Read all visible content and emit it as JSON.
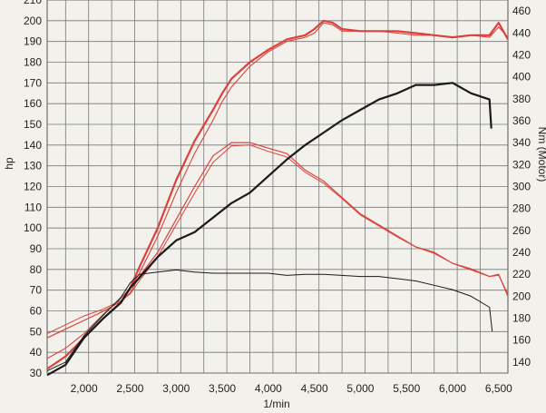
{
  "chart_data": {
    "type": "line",
    "xlabel": "1/min",
    "ylabel_left": "hp",
    "ylabel_right": "Nm (Motor)",
    "xlim": [
      1600,
      6600
    ],
    "ylim_left": [
      30,
      210
    ],
    "ylim_right": [
      130,
      470
    ],
    "x_ticks": [
      "2,000",
      "2,500",
      "3,000",
      "3,500",
      "4,000",
      "4,500",
      "5,000",
      "5,500",
      "6,000",
      "6,500"
    ],
    "y_left_ticks": [
      "30",
      "40",
      "50",
      "60",
      "70",
      "80",
      "90",
      "100",
      "110",
      "120",
      "130",
      "140",
      "150",
      "160",
      "170",
      "180",
      "190",
      "200",
      "210"
    ],
    "y_right_ticks": [
      "140",
      "160",
      "180",
      "200",
      "220",
      "240",
      "260",
      "280",
      "300",
      "320",
      "340",
      "360",
      "380",
      "400",
      "420",
      "440",
      "460"
    ],
    "grid": true,
    "series": [
      {
        "color": "#d9423d",
        "axis": "left",
        "width": 2.2,
        "points": [
          [
            1600,
            32
          ],
          [
            1800,
            38
          ],
          [
            2000,
            47
          ],
          [
            2200,
            56
          ],
          [
            2400,
            64
          ],
          [
            2500,
            71
          ],
          [
            2600,
            81
          ],
          [
            2800,
            100
          ],
          [
            3000,
            123
          ],
          [
            3200,
            142
          ],
          [
            3400,
            157
          ],
          [
            3500,
            165
          ],
          [
            3600,
            172
          ],
          [
            3800,
            180
          ],
          [
            4000,
            186
          ],
          [
            4200,
            191
          ],
          [
            4400,
            193
          ],
          [
            4500,
            196
          ],
          [
            4600,
            200
          ],
          [
            4700,
            199
          ],
          [
            4800,
            196
          ],
          [
            5000,
            195
          ],
          [
            5200,
            195
          ],
          [
            5400,
            195
          ],
          [
            5600,
            194
          ],
          [
            5800,
            193
          ],
          [
            6000,
            192
          ],
          [
            6200,
            193
          ],
          [
            6400,
            193
          ],
          [
            6500,
            199
          ],
          [
            6600,
            191
          ]
        ]
      },
      {
        "color": "#d9423d",
        "axis": "left",
        "width": 1.1,
        "points": [
          [
            1600,
            37
          ],
          [
            1800,
            42
          ],
          [
            2000,
            49
          ],
          [
            2200,
            58
          ],
          [
            2400,
            66
          ],
          [
            2500,
            71
          ],
          [
            2600,
            78
          ],
          [
            2800,
            96
          ],
          [
            3000,
            117
          ],
          [
            3200,
            136
          ],
          [
            3400,
            152
          ],
          [
            3500,
            161
          ],
          [
            3600,
            168
          ],
          [
            3800,
            178
          ],
          [
            4000,
            185
          ],
          [
            4200,
            190
          ],
          [
            4400,
            192
          ],
          [
            4500,
            194
          ],
          [
            4600,
            199
          ],
          [
            4700,
            198
          ],
          [
            4800,
            195
          ],
          [
            5000,
            195
          ],
          [
            5200,
            195
          ],
          [
            5400,
            194
          ],
          [
            5600,
            193
          ],
          [
            5800,
            193
          ],
          [
            6000,
            192
          ],
          [
            6200,
            193
          ],
          [
            6400,
            192
          ],
          [
            6500,
            197
          ],
          [
            6600,
            192
          ]
        ]
      },
      {
        "color": "#d9423d",
        "axis": "right",
        "width": 1.2,
        "points": [
          [
            1600,
            162
          ],
          [
            1800,
            170
          ],
          [
            2000,
            178
          ],
          [
            2200,
            186
          ],
          [
            2400,
            195
          ],
          [
            2500,
            203
          ],
          [
            2600,
            218
          ],
          [
            2800,
            240
          ],
          [
            3000,
            270
          ],
          [
            3200,
            300
          ],
          [
            3400,
            328
          ],
          [
            3600,
            340
          ],
          [
            3800,
            340
          ],
          [
            4000,
            335
          ],
          [
            4200,
            330
          ],
          [
            4400,
            315
          ],
          [
            4600,
            305
          ],
          [
            4800,
            290
          ],
          [
            5000,
            275
          ],
          [
            5200,
            265
          ],
          [
            5400,
            255
          ],
          [
            5600,
            245
          ],
          [
            5800,
            240
          ],
          [
            6000,
            230
          ],
          [
            6200,
            225
          ],
          [
            6400,
            218
          ],
          [
            6500,
            220
          ],
          [
            6600,
            200
          ]
        ]
      },
      {
        "color": "#d9423d",
        "axis": "right",
        "width": 1.0,
        "points": [
          [
            1600,
            166
          ],
          [
            1800,
            174
          ],
          [
            2000,
            182
          ],
          [
            2200,
            188
          ],
          [
            2400,
            196
          ],
          [
            2500,
            202
          ],
          [
            2600,
            214
          ],
          [
            2800,
            236
          ],
          [
            3000,
            265
          ],
          [
            3200,
            294
          ],
          [
            3400,
            322
          ],
          [
            3600,
            337
          ],
          [
            3800,
            338
          ],
          [
            4000,
            332
          ],
          [
            4200,
            327
          ],
          [
            4400,
            313
          ],
          [
            4600,
            303
          ],
          [
            4800,
            289
          ],
          [
            5000,
            274
          ],
          [
            5200,
            264
          ],
          [
            5400,
            254
          ],
          [
            5600,
            245
          ],
          [
            5800,
            239
          ],
          [
            6000,
            230
          ],
          [
            6200,
            224
          ],
          [
            6400,
            218
          ],
          [
            6500,
            219
          ],
          [
            6600,
            202
          ]
        ]
      },
      {
        "color": "#1a1a1a",
        "axis": "left",
        "width": 2.2,
        "points": [
          [
            1600,
            29
          ],
          [
            1800,
            34
          ],
          [
            2000,
            47
          ],
          [
            2200,
            56
          ],
          [
            2400,
            64
          ],
          [
            2500,
            71
          ],
          [
            2600,
            76
          ],
          [
            2800,
            86
          ],
          [
            3000,
            94
          ],
          [
            3200,
            98
          ],
          [
            3400,
            105
          ],
          [
            3600,
            112
          ],
          [
            3800,
            117
          ],
          [
            4000,
            125
          ],
          [
            4200,
            133
          ],
          [
            4400,
            140
          ],
          [
            4600,
            146
          ],
          [
            4800,
            152
          ],
          [
            5000,
            157
          ],
          [
            5200,
            162
          ],
          [
            5400,
            165
          ],
          [
            5600,
            169
          ],
          [
            5800,
            169
          ],
          [
            6000,
            170
          ],
          [
            6200,
            165
          ],
          [
            6400,
            162
          ],
          [
            6420,
            148
          ]
        ]
      },
      {
        "color": "#1a1a1a",
        "axis": "right",
        "width": 1.0,
        "points": [
          [
            1600,
            132
          ],
          [
            1800,
            140
          ],
          [
            2000,
            164
          ],
          [
            2200,
            182
          ],
          [
            2400,
            199
          ],
          [
            2500,
            212
          ],
          [
            2600,
            220
          ],
          [
            2800,
            222
          ],
          [
            3000,
            224
          ],
          [
            3200,
            222
          ],
          [
            3400,
            221
          ],
          [
            3600,
            221
          ],
          [
            3800,
            221
          ],
          [
            4000,
            221
          ],
          [
            4200,
            219
          ],
          [
            4400,
            220
          ],
          [
            4600,
            220
          ],
          [
            4800,
            219
          ],
          [
            5000,
            218
          ],
          [
            5200,
            218
          ],
          [
            5400,
            216
          ],
          [
            5600,
            214
          ],
          [
            5800,
            210
          ],
          [
            6000,
            206
          ],
          [
            6200,
            200
          ],
          [
            6400,
            190
          ],
          [
            6430,
            168
          ]
        ]
      }
    ]
  }
}
